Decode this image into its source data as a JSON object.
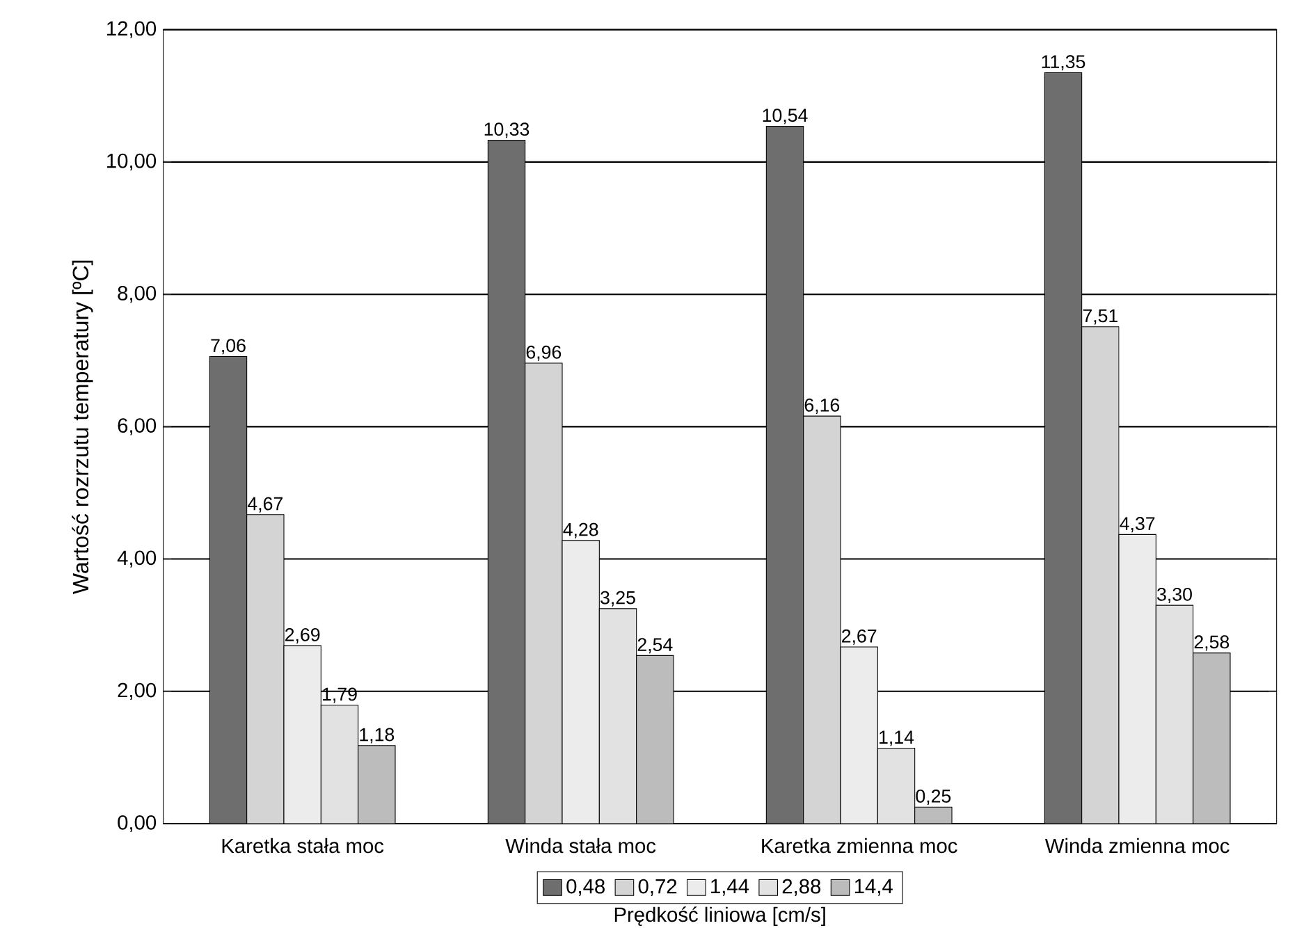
{
  "chart_data": {
    "type": "bar",
    "ylabel": "Wartość rozrzutu temperatury [ºC]",
    "xlabel": "Prędkość liniowa [cm/s]",
    "categories": [
      "Karetka stała moc",
      "Winda stała moc",
      "Karetka zmienna moc",
      "Winda zmienna moc"
    ],
    "series": [
      {
        "name": "0,48",
        "color": "#6e6e6e",
        "values": [
          7.06,
          10.33,
          10.54,
          11.35
        ],
        "value_labels": [
          "7,06",
          "10,33",
          "10,54",
          "11,35"
        ]
      },
      {
        "name": "0,72",
        "color": "#d4d4d4",
        "values": [
          4.67,
          6.96,
          6.16,
          7.51
        ],
        "value_labels": [
          "4,67",
          "6,96",
          "6,16",
          "7,51"
        ]
      },
      {
        "name": "1,44",
        "color": "#ececec",
        "values": [
          2.69,
          4.28,
          2.67,
          4.37
        ],
        "value_labels": [
          "2,69",
          "4,28",
          "2,67",
          "4,37"
        ]
      },
      {
        "name": "2,88",
        "color": "#e2e2e2",
        "values": [
          1.79,
          3.25,
          1.14,
          3.3
        ],
        "value_labels": [
          "1,79",
          "3,25",
          "1,14",
          "3,30"
        ]
      },
      {
        "name": "14,4",
        "color": "#bcbcbc",
        "values": [
          1.18,
          2.54,
          0.25,
          2.58
        ],
        "value_labels": [
          "1,18",
          "2,54",
          "0,25",
          "2,58"
        ]
      }
    ],
    "ylim": [
      0,
      12
    ],
    "yticks": [
      {
        "value": 0,
        "label": "0,00"
      },
      {
        "value": 2,
        "label": "2,00"
      },
      {
        "value": 4,
        "label": "4,00"
      },
      {
        "value": 6,
        "label": "6,00"
      },
      {
        "value": 8,
        "label": "8,00"
      },
      {
        "value": 10,
        "label": "10,00"
      },
      {
        "value": 12,
        "label": "12,00"
      }
    ],
    "grid": "y",
    "legend": "bottom"
  }
}
